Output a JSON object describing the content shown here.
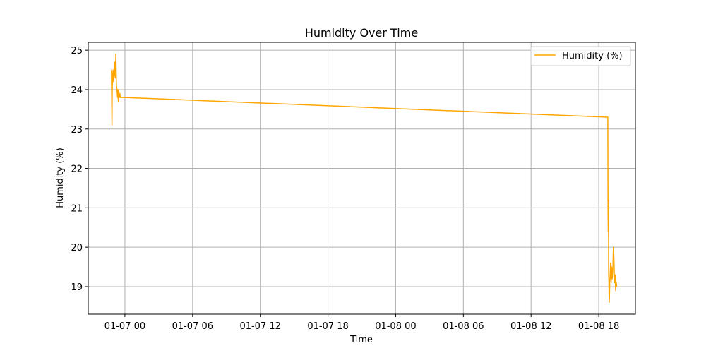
{
  "chart_data": {
    "type": "line",
    "title": "Humidity Over Time",
    "xlabel": "Time",
    "ylabel": "Humidity (%)",
    "x_tick_labels": [
      "01-07 00",
      "01-07 06",
      "01-07 12",
      "01-07 18",
      "01-08 00",
      "01-08 06",
      "01-08 12",
      "01-08 18"
    ],
    "x_tick_values": [
      0,
      6,
      12,
      18,
      24,
      30,
      36,
      42
    ],
    "y_tick_labels": [
      "19",
      "20",
      "21",
      "22",
      "23",
      "24",
      "25"
    ],
    "y_tick_values": [
      19,
      20,
      21,
      22,
      23,
      24,
      25
    ],
    "xlim": [
      -3.25,
      45.25
    ],
    "ylim": [
      18.3,
      25.2
    ],
    "grid": true,
    "legend_position": "top-right",
    "series": [
      {
        "name": "Humidity (%)",
        "color": "#ffa500",
        "x": [
          -1.2,
          -1.15,
          -1.12,
          -1.1,
          -1.05,
          -1.0,
          -0.95,
          -0.9,
          -0.85,
          -0.8,
          -0.75,
          -0.7,
          -0.65,
          -0.62,
          -0.58,
          -0.55,
          -0.5,
          -0.45,
          -0.4,
          -0.35,
          -0.3,
          0.0,
          42.8,
          42.82,
          42.84,
          42.86,
          42.88,
          42.9,
          42.92,
          42.95,
          42.98,
          43.0,
          43.05,
          43.1,
          43.15,
          43.2,
          43.25,
          43.3,
          43.35,
          43.4,
          43.45,
          43.5,
          43.55,
          43.6
        ],
        "y": [
          24.5,
          23.1,
          24.0,
          24.3,
          24.5,
          24.2,
          24.4,
          24.7,
          24.3,
          24.9,
          24.1,
          24.0,
          23.8,
          24.0,
          23.7,
          24.0,
          23.8,
          23.9,
          23.8,
          23.8,
          23.8,
          23.8,
          23.3,
          21.0,
          20.4,
          21.2,
          19.3,
          19.2,
          18.6,
          18.7,
          19.2,
          19.2,
          19.6,
          19.1,
          19.5,
          19.2,
          19.4,
          20.0,
          19.7,
          19.1,
          19.3,
          18.9,
          19.1,
          19.0
        ]
      }
    ]
  }
}
